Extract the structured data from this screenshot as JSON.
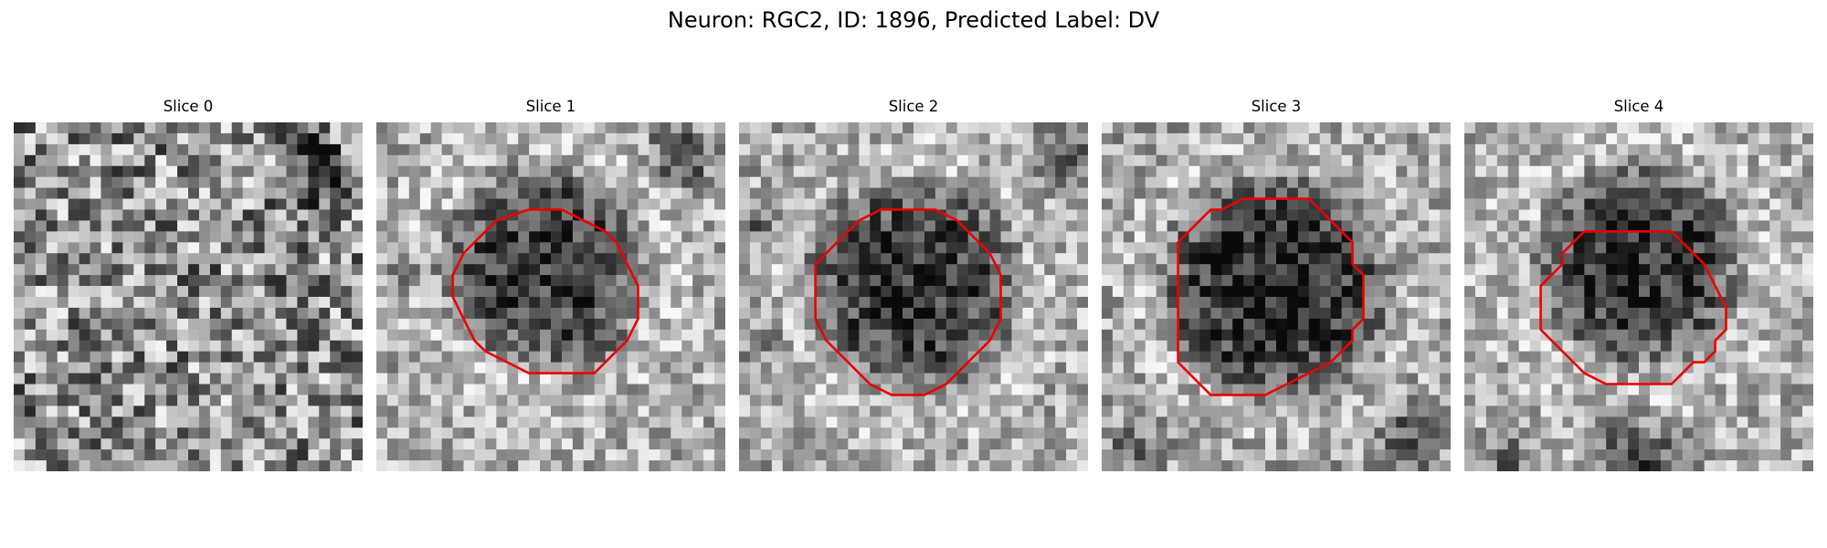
{
  "figure": {
    "title": "Neuron: RGC2, ID: 1896, Predicted Label: DV"
  },
  "outline_color": "#ee0000",
  "panels": [
    {
      "title": "Slice 0",
      "has_outline": false
    },
    {
      "title": "Slice 1",
      "has_outline": true
    },
    {
      "title": "Slice 2",
      "has_outline": true
    },
    {
      "title": "Slice 3",
      "has_outline": true
    },
    {
      "title": "Slice 4",
      "has_outline": true
    }
  ]
}
